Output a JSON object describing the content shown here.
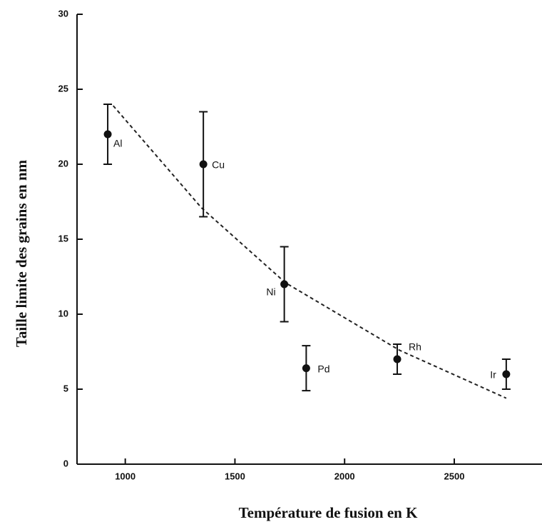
{
  "chart_data": {
    "type": "scatter",
    "x_label": "Température de fusion en  K",
    "y_label": "Taille limite des grains  en nm",
    "series": [
      {
        "x": [
          920,
          1356,
          1725,
          1825,
          2240,
          2737
        ],
        "values": [
          22,
          20,
          12,
          6.4,
          7,
          6
        ],
        "errors": [
          2,
          3.5,
          2.5,
          1.5,
          1,
          1
        ],
        "point_labels": [
          "Al",
          "Cu",
          "Ni",
          "Pd",
          "Rh",
          "Ir"
        ],
        "color": "#111111"
      }
    ],
    "fit": {
      "x": [
        945,
        1347,
        1730,
        2250,
        2737
      ],
      "values": [
        23.9,
        17.1,
        12.1,
        7.6,
        4.4
      ],
      "color": "#222222",
      "dashed": true
    },
    "xlim": [
      780,
      2900
    ],
    "xticks": [
      1000,
      1500,
      2000,
      2500
    ],
    "ylim": [
      0,
      30
    ],
    "yticks": [
      0,
      5,
      10,
      15,
      20,
      25,
      30
    ]
  }
}
